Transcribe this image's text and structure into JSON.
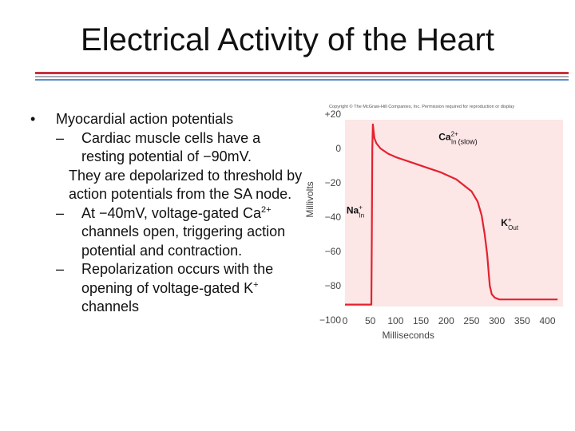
{
  "slide": {
    "title": "Electrical Activity of the Heart",
    "bullet_1": "Myocardial action potentials",
    "sub_1_a": "Cardiac muscle cells have a resting potential of −90mV.",
    "sub_1_b": "They are depolarized to threshold by action potentials from the SA node.",
    "sub_2_pre": "At −40mV, voltage-gated Ca",
    "sub_2_sup": "2+",
    "sub_2_post": "channels open, triggering action potential and contraction.",
    "sub_3_pre": "Repolarization occurs with the opening of voltage-gated K",
    "sub_3_sup": "+",
    "sub_3_post": "channels"
  },
  "chart_data": {
    "type": "line",
    "copyright": "Copyright © The McGraw-Hill Companies, Inc. Permission required for reproduction or display",
    "xlabel": "Milliseconds",
    "ylabel": "Millivolts",
    "xlim": [
      0,
      420
    ],
    "ylim": [
      -110,
      25
    ],
    "xticks": [
      0,
      50,
      100,
      150,
      200,
      250,
      300,
      350,
      400
    ],
    "yticks": [
      20,
      0,
      -20,
      -40,
      -60,
      -80,
      -100
    ],
    "ytick_labels": [
      "+20",
      "0",
      "−20",
      "−40",
      "−60",
      "−80",
      "−100"
    ],
    "annotations": [
      {
        "ion": "Ca",
        "sup": "2+",
        "sub": "In",
        "note": "(slow)",
        "x": 185,
        "y": 5
      },
      {
        "ion": "Na",
        "sup": "+",
        "sub": "In",
        "note": "",
        "x": 3,
        "y": -38
      },
      {
        "ion": "K",
        "sup": "+",
        "sub": "Out",
        "note": "",
        "x": 308,
        "y": -45
      }
    ],
    "series": [
      {
        "x": [
          0,
          52,
          53,
          54,
          55,
          58,
          62,
          70,
          85,
          100,
          130,
          160,
          190,
          220,
          250,
          262,
          270,
          276,
          281,
          284,
          286,
          290,
          296,
          305,
          330,
          360,
          390,
          420
        ],
        "y": [
          -91,
          -91,
          -50,
          0,
          14,
          6,
          3,
          0,
          -3,
          -5,
          -8,
          -11,
          -14,
          -18,
          -25,
          -31,
          -39,
          -50,
          -62,
          -73,
          -80,
          -85,
          -87,
          -88,
          -88,
          -88,
          -88,
          -88
        ]
      }
    ],
    "colors": {
      "background": "#fde6e6",
      "line": "#e4212f",
      "tick_text": "#444444"
    }
  }
}
